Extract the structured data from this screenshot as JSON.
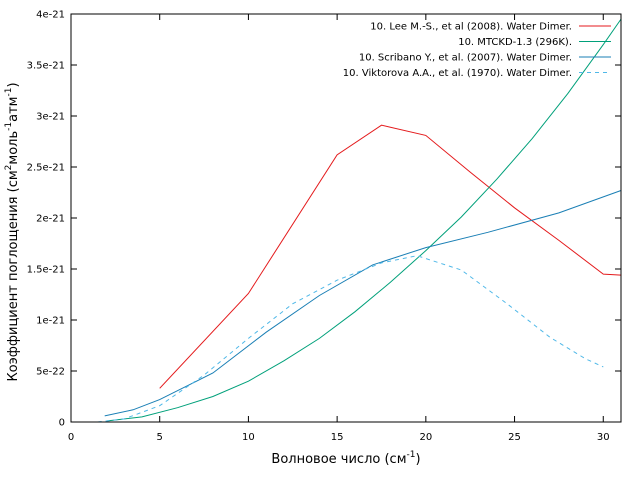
{
  "chart_data": {
    "type": "line",
    "xlabel": "Волновое число (см",
    "xlabel_sup": "-1",
    "xlabel_end": ")",
    "ylabel": "Коэффициент поглощения (см",
    "ylabel_sup1": "2",
    "ylabel_mid1": "моль",
    "ylabel_sup2": "-1",
    "ylabel_mid2": "атм",
    "ylabel_sup3": "-1",
    "ylabel_end": ")",
    "xlim": [
      0,
      31
    ],
    "ylim": [
      0,
      4e-21
    ],
    "x_ticks": [
      0,
      5,
      10,
      15,
      20,
      25,
      30
    ],
    "x_tick_labels": [
      "0",
      "5",
      "10",
      "15",
      "20",
      "25",
      "30"
    ],
    "y_ticks": [
      0,
      5e-22,
      1e-21,
      1.5e-21,
      2e-21,
      2.5e-21,
      3e-21,
      3.5e-21,
      4e-21
    ],
    "y_tick_labels": [
      "0",
      "5e-22",
      "1e-21",
      "1.5e-21",
      "2e-21",
      "2.5e-21",
      "3e-21",
      "3.5e-21",
      "4e-21"
    ],
    "grid": false,
    "legend_position": "top-right",
    "series": [
      {
        "name": "10. Lee M.-S., et al (2008). Water Dimer.",
        "color": "#e41a1c",
        "dash": "solid",
        "x": [
          5,
          10,
          15,
          17.5,
          20,
          22.5,
          25,
          27.5,
          30,
          31
        ],
        "y": [
          3.3e-22,
          1.26e-21,
          2.62e-21,
          2.91e-21,
          2.81e-21,
          2.45e-21,
          2.1e-21,
          1.78e-21,
          1.45e-21,
          1.44e-21
        ]
      },
      {
        "name": "10. MTCKD-1.3 (296K).",
        "color": "#00a07a",
        "dash": "solid",
        "x": [
          2,
          4,
          6,
          8,
          10,
          12,
          14,
          16,
          18,
          20,
          22,
          24,
          26,
          28,
          30,
          31
        ],
        "y": [
          1e-23,
          5e-23,
          1.4e-22,
          2.5e-22,
          4e-22,
          6e-22,
          8.2e-22,
          1.08e-21,
          1.37e-21,
          1.68e-21,
          2.01e-21,
          2.38e-21,
          2.78e-21,
          3.22e-21,
          3.7e-21,
          3.95e-21
        ]
      },
      {
        "name": "10. Scribano Y., et al. (2007). Water Dimer.",
        "color": "#1a7fb5",
        "dash": "solid",
        "x": [
          1.9,
          3.5,
          5,
          8,
          11,
          14,
          17,
          20,
          23.5,
          27.5,
          31
        ],
        "y": [
          6e-23,
          1.2e-22,
          2.2e-22,
          4.8e-22,
          8.8e-22,
          1.24e-21,
          1.54e-21,
          1.71e-21,
          1.86e-21,
          2.05e-21,
          2.27e-21
        ]
      },
      {
        "name": "10. Viktorova A.A., et al. (1970). Water Dimer.",
        "color": "#4fb8e8",
        "dash": "dashed",
        "x": [
          1.5,
          3,
          5,
          7.5,
          10,
          12.5,
          15,
          17.5,
          19.5,
          22,
          24.5,
          27,
          29,
          30
        ],
        "y": [
          0,
          3e-23,
          1.6e-22,
          4.6e-22,
          8.2e-22,
          1.16e-21,
          1.39e-21,
          1.56e-21,
          1.63e-21,
          1.49e-21,
          1.17e-21,
          8.3e-22,
          6.2e-22,
          5.4e-22
        ]
      }
    ]
  }
}
